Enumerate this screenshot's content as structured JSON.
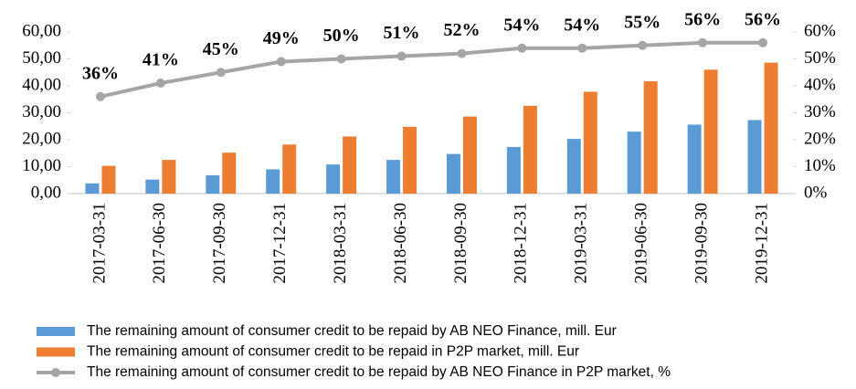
{
  "chart_data": {
    "type": "bar",
    "categories": [
      "2017-03-31",
      "2017-06-30",
      "2017-09-30",
      "2017-12-31",
      "2018-03-31",
      "2018-06-30",
      "2018-09-30",
      "2018-12-31",
      "2019-03-31",
      "2019-06-30",
      "2019-09-30",
      "2019-12-31"
    ],
    "series": [
      {
        "name": "The remaining amount of consumer credit to be repaid by AB NEO Finance, mill. Eur",
        "type": "bar",
        "color": "#5b9bd5",
        "values": [
          3.8,
          5.2,
          6.8,
          9.0,
          10.8,
          12.5,
          14.7,
          17.3,
          20.3,
          23.0,
          25.6,
          27.3
        ]
      },
      {
        "name": "The remaining amount of consumer credit to be repaid in P2P market, mill. Eur",
        "type": "bar",
        "color": "#ed7d31",
        "values": [
          10.3,
          12.5,
          15.2,
          18.2,
          21.2,
          24.8,
          28.6,
          32.6,
          37.8,
          41.7,
          46.0,
          48.6
        ]
      },
      {
        "name": "The remaining amount of consumer credit to be repaid by AB NEO Finance in P2P market, %",
        "type": "line",
        "axis": "y2",
        "color": "#a5a5a5",
        "values": [
          36,
          41,
          45,
          49,
          50,
          51,
          52,
          54,
          54,
          55,
          56,
          56
        ],
        "value_labels": [
          "36%",
          "41%",
          "45%",
          "49%",
          "50%",
          "51%",
          "52%",
          "54%",
          "54%",
          "55%",
          "56%",
          "56%"
        ]
      }
    ],
    "ylim": [
      0,
      60
    ],
    "yticks": [
      {
        "value": 0,
        "label": "0,00"
      },
      {
        "value": 10,
        "label": "10,00"
      },
      {
        "value": 20,
        "label": "20,00"
      },
      {
        "value": 30,
        "label": "30,00"
      },
      {
        "value": 40,
        "label": "40,00"
      },
      {
        "value": 50,
        "label": "50,00"
      },
      {
        "value": 60,
        "label": "60,00"
      }
    ],
    "y2lim": [
      0,
      60
    ],
    "y2ticks": [
      {
        "value": 0,
        "label": "0%"
      },
      {
        "value": 10,
        "label": "10%"
      },
      {
        "value": 20,
        "label": "20%"
      },
      {
        "value": 30,
        "label": "30%"
      },
      {
        "value": 40,
        "label": "40%"
      },
      {
        "value": 50,
        "label": "50%"
      },
      {
        "value": 60,
        "label": "60%"
      }
    ],
    "grid": false,
    "legend": "bottom"
  }
}
